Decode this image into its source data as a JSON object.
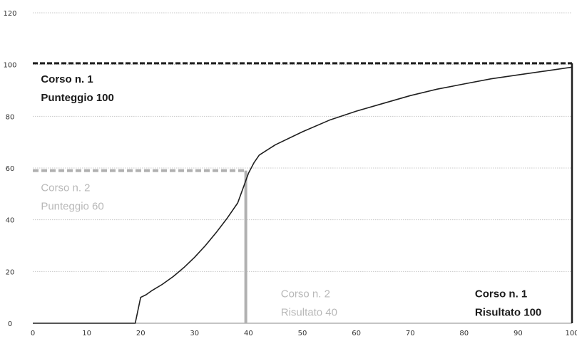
{
  "chart_data": {
    "type": "line",
    "title": "",
    "xlabel": "",
    "ylabel": "",
    "xlim": [
      0,
      100
    ],
    "ylim": [
      0,
      120
    ],
    "x_ticks": [
      0,
      10,
      20,
      30,
      40,
      50,
      60,
      70,
      80,
      90,
      100
    ],
    "y_ticks": [
      0,
      20,
      40,
      60,
      80,
      100,
      120
    ],
    "grid": "horizontal",
    "series": [
      {
        "color": "#1f1f1f",
        "points": [
          [
            0,
            0
          ],
          [
            19,
            0
          ],
          [
            20,
            10
          ],
          [
            21,
            11
          ],
          [
            22,
            12.5
          ],
          [
            24,
            15
          ],
          [
            26,
            18
          ],
          [
            28,
            21.5
          ],
          [
            30,
            25.5
          ],
          [
            32,
            30
          ],
          [
            34,
            35
          ],
          [
            36,
            40.5
          ],
          [
            38,
            46.5
          ],
          [
            40,
            58
          ],
          [
            41,
            62
          ],
          [
            42,
            65
          ],
          [
            45,
            69
          ],
          [
            50,
            74
          ],
          [
            55,
            78.5
          ],
          [
            60,
            82
          ],
          [
            65,
            85
          ],
          [
            70,
            88
          ],
          [
            75,
            90.5
          ],
          [
            80,
            92.5
          ],
          [
            85,
            94.5
          ],
          [
            90,
            96
          ],
          [
            95,
            97.5
          ],
          [
            100,
            99
          ]
        ]
      }
    ],
    "reference_lines": [
      {
        "name": "corso-1",
        "color": "#1f1f1f",
        "horizontal_dashed_y": 100.5,
        "vertical_x": 100
      },
      {
        "name": "corso-2",
        "color": "#b0b0b0",
        "horizontal_dashed_y": 59,
        "vertical_x": 39.5
      }
    ],
    "annotations": [
      {
        "id": "corso1_punteggio",
        "lines": [
          "Corso n. 1",
          "Punteggio 100"
        ],
        "style": "dark",
        "x": 1.5,
        "y": 93
      },
      {
        "id": "corso2_punteggio",
        "lines": [
          "Corso n. 2",
          "Punteggio 60"
        ],
        "style": "light",
        "x": 1.5,
        "y": 51
      },
      {
        "id": "corso2_risultato",
        "lines": [
          "Corso n. 2",
          "Risultato 40"
        ],
        "style": "light",
        "x": 46,
        "y": 10
      },
      {
        "id": "corso1_risultato",
        "lines": [
          "Corso n. 1",
          "Risultato 100"
        ],
        "style": "dark",
        "x": 82,
        "y": 10
      }
    ]
  }
}
